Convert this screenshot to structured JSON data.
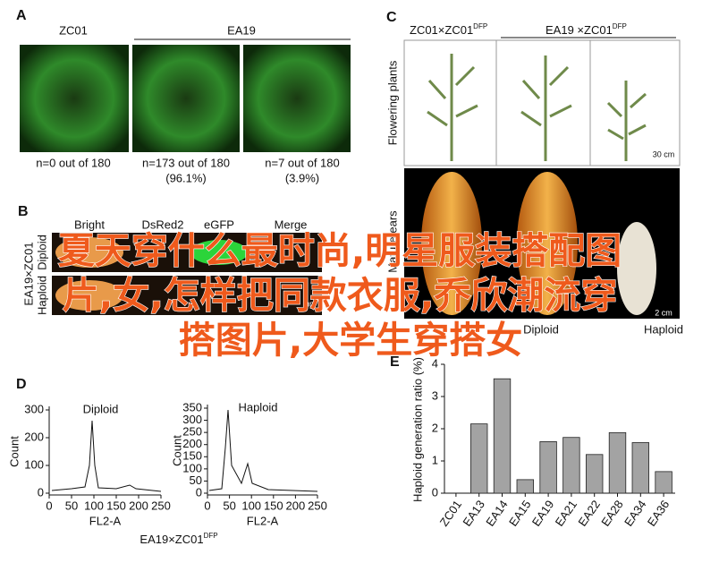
{
  "panel_a": {
    "label": "A",
    "headers": [
      "ZC01",
      "EA19"
    ],
    "captions": [
      "n=0 out of 180",
      "n=173 out of 180",
      "(96.1%)",
      "n=7 out of 180",
      "(3.9%)"
    ]
  },
  "panel_b": {
    "label": "B",
    "columns": [
      "Bright",
      "DsRed2",
      "eGFP",
      "Merge"
    ],
    "rows": [
      "Diploid",
      "Haploid"
    ],
    "cross": "EA19×ZC01",
    "scale": "mm"
  },
  "panel_c": {
    "label": "C",
    "header_1": "ZC01×ZC01",
    "header_1_sup": "DFP",
    "header_2": "EA19 ×ZC01",
    "header_2_sup": "DFP",
    "row_1": "Flowering plants",
    "row_2": "Mature ears",
    "scale_1": "30 cm",
    "scale_2": "2 cm",
    "bottom": [
      "Diploid",
      "Haploid"
    ]
  },
  "panel_d": {
    "label": "D",
    "cross": "EA19×ZC01",
    "cross_sup": "DFP",
    "histograms": [
      {
        "title": "Diploid",
        "ylabel": "Count",
        "xlabel": "FL2-A",
        "xlim": [
          0,
          250
        ],
        "xticks": [
          0,
          50,
          100,
          150,
          200,
          250
        ],
        "ylim": [
          0,
          300
        ],
        "yticks": [
          0,
          100,
          200,
          300
        ]
      },
      {
        "title": "Haploid",
        "ylabel": "Count",
        "xlabel": "FL2-A",
        "xlim": [
          0,
          250
        ],
        "xticks": [
          0,
          50,
          100,
          150,
          200,
          250
        ],
        "ylim": [
          0,
          350
        ],
        "yticks": [
          0,
          50,
          100,
          150,
          200,
          250,
          300,
          350
        ]
      }
    ]
  },
  "panel_e": {
    "label": "E"
  },
  "chart_data": {
    "type": "bar",
    "ylabel": "Haploid generation ratio (%)",
    "categories": [
      "ZC01",
      "EA13",
      "EA14",
      "EA15",
      "EA19",
      "EA21",
      "EA22",
      "EA28",
      "EA34",
      "EA36"
    ],
    "values": [
      0,
      2.15,
      3.55,
      0.42,
      1.6,
      1.73,
      1.2,
      1.88,
      1.57,
      0.67
    ],
    "color": "#a3a3a3",
    "ylim": [
      0,
      4
    ],
    "yticks": [
      0,
      1,
      2,
      3,
      4
    ]
  },
  "overlay": {
    "lines": [
      "夏天穿什么最时尚,明星服装搭配图",
      "片,女,怎样把同款衣服,乔欣潮流穿",
      "搭图片,大学生穿搭女"
    ]
  }
}
